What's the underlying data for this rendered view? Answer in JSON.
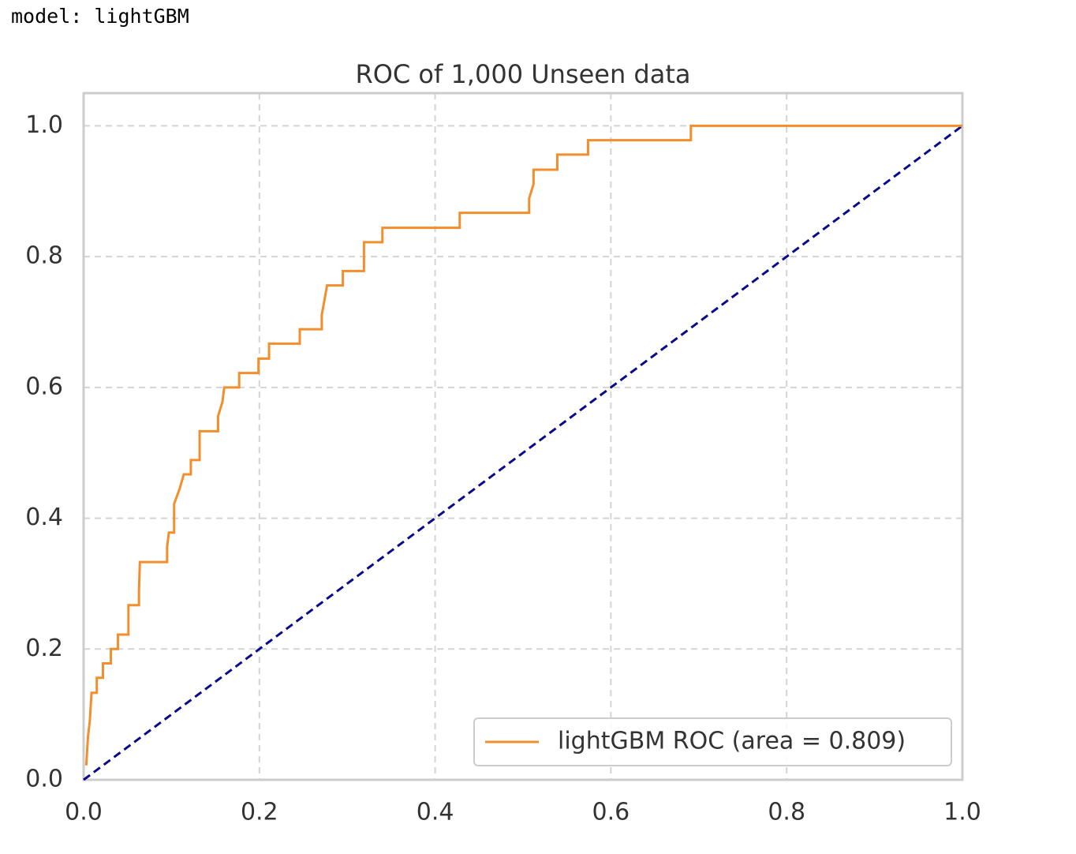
{
  "header": "model: lightGBM",
  "chart_data": {
    "type": "line",
    "title": "ROC of 1,000 Unseen data",
    "x": [
      0.003,
      0.005,
      0.007,
      0.009,
      0.015,
      0.015,
      0.022,
      0.022,
      0.031,
      0.031,
      0.039,
      0.039,
      0.051,
      0.051,
      0.063,
      0.063,
      0.064,
      0.095,
      0.095,
      0.097,
      0.103,
      0.103,
      0.109,
      0.114,
      0.122,
      0.122,
      0.132,
      0.132,
      0.153,
      0.153,
      0.158,
      0.16,
      0.177,
      0.177,
      0.199,
      0.199,
      0.211,
      0.211,
      0.246,
      0.246,
      0.271,
      0.271,
      0.274,
      0.277,
      0.295,
      0.295,
      0.319,
      0.319,
      0.34,
      0.34,
      0.428,
      0.428,
      0.507,
      0.507,
      0.512,
      0.512,
      0.539,
      0.539,
      0.574,
      0.574,
      0.691,
      0.691,
      1.0
    ],
    "series": [
      {
        "name": "lightGBM ROC (area = 0.809)",
        "color": "#f28e2b",
        "values": [
          0.022,
          0.067,
          0.089,
          0.133,
          0.133,
          0.156,
          0.156,
          0.178,
          0.178,
          0.2,
          0.2,
          0.222,
          0.222,
          0.267,
          0.267,
          0.289,
          0.333,
          0.333,
          0.356,
          0.378,
          0.378,
          0.422,
          0.444,
          0.467,
          0.467,
          0.489,
          0.489,
          0.533,
          0.533,
          0.556,
          0.578,
          0.6,
          0.6,
          0.622,
          0.622,
          0.644,
          0.644,
          0.667,
          0.667,
          0.689,
          0.689,
          0.711,
          0.733,
          0.756,
          0.756,
          0.778,
          0.778,
          0.822,
          0.822,
          0.844,
          0.844,
          0.867,
          0.867,
          0.889,
          0.911,
          0.933,
          0.933,
          0.956,
          0.956,
          0.978,
          0.978,
          1.0,
          1.0
        ]
      }
    ],
    "reference_line": {
      "x": [
        0,
        1
      ],
      "values": [
        0,
        1
      ],
      "color": "#0a0a8c",
      "dashed": true
    },
    "xlim": [
      0,
      1
    ],
    "ylim": [
      0,
      1.05
    ],
    "xticks": [
      {
        "value": 0,
        "label": "0.0"
      },
      0.2,
      0.4,
      0.6,
      0.8,
      {
        "value": 1,
        "label": "1.0"
      }
    ],
    "yticks": [
      {
        "value": 0,
        "label": "0.0"
      },
      0.2,
      0.4,
      0.6,
      0.8,
      {
        "value": 1,
        "label": "1.0"
      }
    ],
    "grid": true,
    "legend": "lower right"
  }
}
